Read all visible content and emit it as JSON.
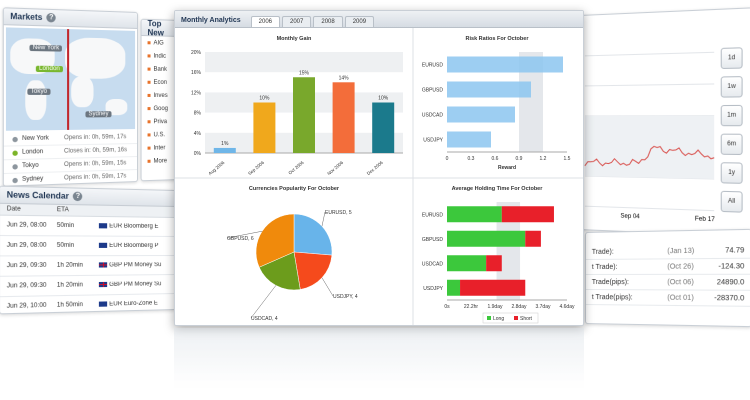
{
  "markets": {
    "title": "Markets",
    "cities": [
      {
        "name": "New York",
        "opens": "Opens in: 0h, 59m, 17s",
        "active": false
      },
      {
        "name": "London",
        "opens": "Closes in: 0h, 59m, 16s",
        "active": true
      },
      {
        "name": "Tokyo",
        "opens": "Opens in: 0h, 59m, 15s",
        "active": false
      },
      {
        "name": "Sydney",
        "opens": "Opens in: 0h, 59m, 17s",
        "active": false
      }
    ],
    "map_labels": [
      "New York",
      "London",
      "Tokyo",
      "Sydney"
    ]
  },
  "top_news": {
    "title": "Top New",
    "items": [
      "AIG",
      "Indic",
      "Bank",
      "Econ",
      "Inves",
      "Goog",
      "Priva",
      "U.S.",
      "Inter",
      "More"
    ]
  },
  "news_calendar": {
    "title": "News Calendar",
    "headers": [
      "Date",
      "ETA"
    ],
    "rows": [
      {
        "date": "Jun 29, 08:00",
        "eta": "50min",
        "flag": "us",
        "event": "EUR Bloomberg E"
      },
      {
        "date": "Jun 29, 08:00",
        "eta": "50min",
        "flag": "us",
        "event": "EUR Bloomberg P"
      },
      {
        "date": "Jun 29, 09:30",
        "eta": "1h 20min",
        "flag": "gb",
        "event": "GBP PM Money Su"
      },
      {
        "date": "Jun 29, 09:30",
        "eta": "1h 20min",
        "flag": "gb",
        "event": "GBP PM Money Su"
      },
      {
        "date": "Jun 29, 10:00",
        "eta": "1h 50min",
        "flag": "us",
        "event": "EUR Euro-Zone E"
      }
    ]
  },
  "analytics": {
    "title": "Monthly Analytics",
    "tabs": [
      "2006",
      "2007",
      "2008",
      "2009"
    ],
    "active_tab": "2006"
  },
  "right_chart": {
    "buttons": [
      "1d",
      "1w",
      "1m",
      "6m",
      "1y",
      "All"
    ],
    "x_ticks": [
      "Sep 04",
      "Feb 17"
    ],
    "line_color": "#d9534f"
  },
  "stats": {
    "rows": [
      {
        "label": "Trade):",
        "date": "(Jan 13)",
        "value": "74.79"
      },
      {
        "label": "t Trade):",
        "date": "(Oct 26)",
        "value": "-124.30"
      },
      {
        "label": "Trade(pips):",
        "date": "(Oct 06)",
        "value": "24890.0"
      },
      {
        "label": "t Trade(pips):",
        "date": "(Oct 01)",
        "value": "-28370.0"
      }
    ]
  },
  "chart_data": [
    {
      "type": "bar",
      "title": "Monthly Gain",
      "categories": [
        "Aug 2006",
        "Sep 2006",
        "Oct 2006",
        "Nov 2006",
        "Dec 2006"
      ],
      "values": [
        1,
        10,
        15,
        14,
        10
      ],
      "value_labels": [
        "1%",
        "10%",
        "15%",
        "14%",
        "10%"
      ],
      "colors": [
        "#6fb6e8",
        "#f0a81c",
        "#79a82c",
        "#f36d3a",
        "#1b7a8c"
      ],
      "yticks": [
        "0%",
        "4%",
        "8%",
        "12%",
        "16%",
        "20%"
      ],
      "ylim": [
        0,
        20
      ]
    },
    {
      "type": "bar",
      "orientation": "horizontal",
      "title": "Risk Ratios For October",
      "categories": [
        "EURUSD",
        "GBPUSD",
        "USDCAD",
        "USDJPY"
      ],
      "values": [
        1.45,
        1.05,
        0.85,
        0.55
      ],
      "xlabel": "Reward",
      "xticks": [
        "0",
        "0.3",
        "0.6",
        "0.9",
        "1.2",
        "1.5"
      ],
      "xlim": [
        0,
        1.5
      ]
    },
    {
      "type": "pie",
      "title": "Currencies Popularity For October",
      "labels": [
        "EURUSD, 5",
        "USDJPY, 4",
        "USDCAD, 4",
        "GBPUSD, 6"
      ],
      "values": [
        5,
        4,
        4,
        6
      ],
      "colors": [
        "#68b4ea",
        "#f54a1c",
        "#6c9c1c",
        "#f08a0c"
      ]
    },
    {
      "type": "bar",
      "orientation": "horizontal",
      "stacked": true,
      "title": "Average Holding Time For October",
      "categories": [
        "EURUSD",
        "GBPUSD",
        "USDCAD",
        "USDJPY"
      ],
      "series": [
        {
          "name": "Long",
          "values": [
            2.1,
            3.0,
            1.5,
            0.5
          ],
          "color": "#3cc83c"
        },
        {
          "name": "Short",
          "values": [
            2.0,
            0.6,
            0.6,
            2.5
          ],
          "color": "#e8202a"
        }
      ],
      "xticks": [
        "0s",
        "22.2hr",
        "1.9day",
        "2.8day",
        "3.7day",
        "4.6day"
      ],
      "xlim": [
        0,
        4.6
      ]
    }
  ]
}
